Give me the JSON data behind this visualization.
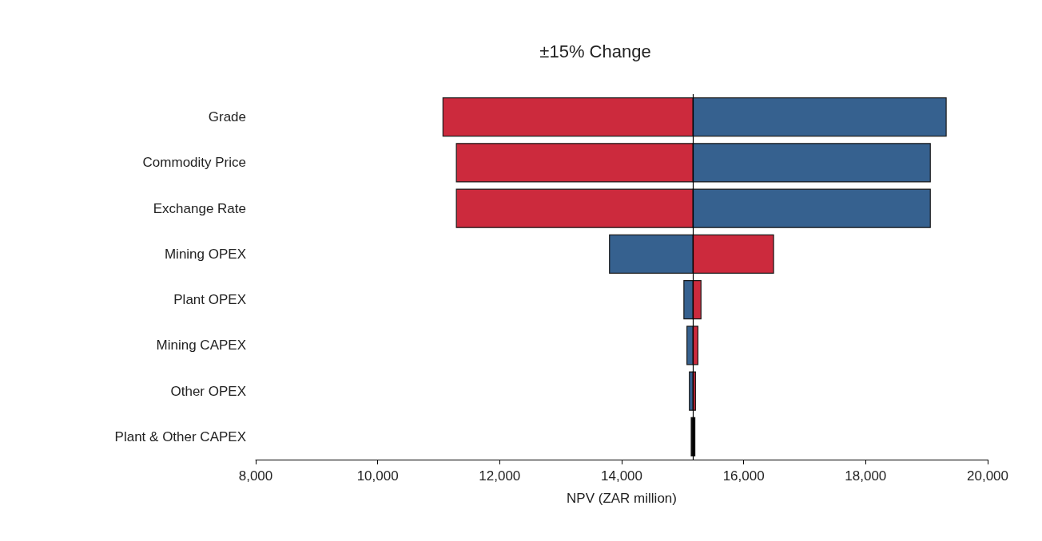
{
  "chart_data": {
    "type": "bar",
    "orientation": "horizontal",
    "title": "±15% Change",
    "xlabel": "NPV (ZAR million)",
    "categories": [
      "Grade",
      "Commodity Price",
      "Exchange Rate",
      "Mining OPEX",
      "Plant OPEX",
      "Mining CAPEX",
      "Other OPEX",
      "Plant & Other CAPEX"
    ],
    "series": [
      {
        "colors": [
          "#cc2a3d",
          "#cc2a3d",
          "#cc2a3d",
          "#36618f",
          "#36618f",
          "#36618f",
          "#36618f",
          "#000000"
        ],
        "base": [
          11070,
          11290,
          11290,
          13800,
          15020,
          15070,
          15110,
          15140
        ],
        "values": [
          4100,
          3880,
          3880,
          1370,
          150,
          100,
          60,
          30
        ]
      },
      {
        "colors": [
          "#36618f",
          "#36618f",
          "#36618f",
          "#cc2a3d",
          "#cc2a3d",
          "#cc2a3d",
          "#cc2a3d",
          "#000000"
        ],
        "base": [
          15170,
          15170,
          15170,
          15170,
          15170,
          15170,
          15170,
          15170
        ],
        "values": [
          4150,
          3890,
          3890,
          1320,
          130,
          80,
          40,
          30
        ]
      }
    ],
    "xlim": [
      8000,
      20000
    ],
    "xticks": [
      {
        "value": 8000,
        "label": "8,000"
      },
      {
        "value": 10000,
        "label": "10,000"
      },
      {
        "value": 12000,
        "label": "12,000"
      },
      {
        "value": 14000,
        "label": "14,000"
      },
      {
        "value": 16000,
        "label": "16,000"
      },
      {
        "value": 18000,
        "label": "18,000"
      },
      {
        "value": 20000,
        "label": "20,000"
      }
    ],
    "ref_lines": [
      {
        "axis": "x",
        "value": 15170,
        "color": "#000000"
      }
    ]
  }
}
